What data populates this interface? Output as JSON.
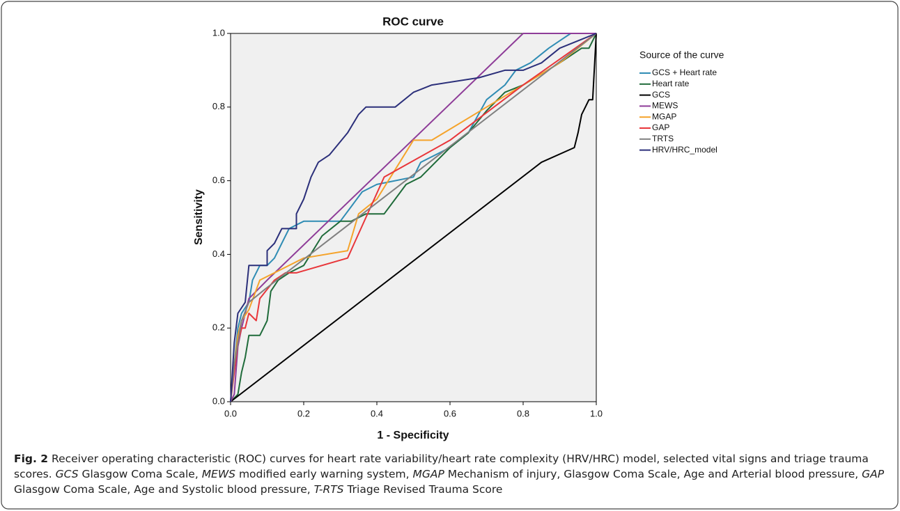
{
  "chart_data": {
    "type": "line",
    "title": "ROC curve",
    "x_label": "1 - Specificity",
    "y_label": "Sensitivity",
    "legend_title": "Source of the curve",
    "legend": "right",
    "grid": false,
    "xlim": [
      0,
      1
    ],
    "ylim": [
      0,
      1
    ],
    "xticks": [
      {
        "value": 0,
        "label": "0.0"
      },
      0.2,
      0.4,
      0.6,
      0.8,
      {
        "value": 1,
        "label": "1.0"
      }
    ],
    "yticks": [
      {
        "value": 0,
        "label": "0.0"
      },
      0.2,
      0.4,
      0.6,
      0.8,
      {
        "value": 1,
        "label": "1.0"
      }
    ],
    "series": [
      {
        "name": "GCS + Heart rate",
        "color": "#2f8cb4",
        "x": [
          0,
          0.01,
          0.02,
          0.03,
          0.05,
          0.06,
          0.08,
          0.1,
          0.12,
          0.14,
          0.16,
          0.2,
          0.3,
          0.33,
          0.36,
          0.4,
          0.5,
          0.52,
          0.6,
          0.65,
          0.7,
          0.75,
          0.78,
          0.82,
          0.87,
          0.9,
          0.93,
          1
        ],
        "values": [
          0,
          0.1,
          0.2,
          0.24,
          0.27,
          0.33,
          0.37,
          0.37,
          0.39,
          0.43,
          0.47,
          0.49,
          0.49,
          0.53,
          0.57,
          0.59,
          0.61,
          0.65,
          0.69,
          0.73,
          0.82,
          0.86,
          0.9,
          0.92,
          0.96,
          0.98,
          1,
          1
        ]
      },
      {
        "name": "Heart rate",
        "color": "#1f6b3a",
        "x": [
          0,
          0.02,
          0.03,
          0.04,
          0.05,
          0.08,
          0.09,
          0.1,
          0.11,
          0.13,
          0.16,
          0.2,
          0.25,
          0.3,
          0.33,
          0.37,
          0.42,
          0.45,
          0.48,
          0.52,
          0.6,
          0.65,
          0.7,
          0.75,
          0.8,
          0.9,
          0.96,
          0.98,
          1
        ],
        "values": [
          0,
          0.02,
          0.08,
          0.12,
          0.18,
          0.18,
          0.2,
          0.22,
          0.3,
          0.33,
          0.35,
          0.37,
          0.45,
          0.49,
          0.49,
          0.51,
          0.51,
          0.55,
          0.59,
          0.61,
          0.69,
          0.73,
          0.79,
          0.84,
          0.86,
          0.92,
          0.96,
          0.96,
          1
        ]
      },
      {
        "name": "GCS",
        "color": "#000000",
        "x": [
          0,
          0.85,
          0.94,
          0.95,
          0.96,
          0.97,
          0.98,
          0.99,
          1
        ],
        "values": [
          0,
          0.65,
          0.69,
          0.73,
          0.78,
          0.8,
          0.82,
          0.82,
          1
        ]
      },
      {
        "name": "MEWS",
        "color": "#8e3c98",
        "x": [
          0,
          0.01,
          0.02,
          0.03,
          0.05,
          0.1,
          0.8,
          1
        ],
        "values": [
          0,
          0.02,
          0.15,
          0.2,
          0.28,
          0.33,
          1,
          1
        ]
      },
      {
        "name": "MGAP",
        "color": "#f5a32a",
        "x": [
          0,
          0.01,
          0.02,
          0.03,
          0.05,
          0.08,
          0.2,
          0.32,
          0.35,
          0.4,
          0.45,
          0.5,
          0.55,
          0.7,
          0.8,
          0.9,
          1
        ],
        "values": [
          0,
          0.1,
          0.18,
          0.22,
          0.25,
          0.33,
          0.39,
          0.41,
          0.51,
          0.55,
          0.63,
          0.71,
          0.71,
          0.8,
          0.86,
          0.92,
          1
        ]
      },
      {
        "name": "GAP",
        "color": "#e8363a",
        "x": [
          0,
          0.01,
          0.02,
          0.03,
          0.04,
          0.05,
          0.07,
          0.08,
          0.12,
          0.15,
          0.18,
          0.32,
          0.42,
          0.6,
          0.8,
          1
        ],
        "values": [
          0,
          0.08,
          0.16,
          0.2,
          0.2,
          0.24,
          0.22,
          0.28,
          0.33,
          0.35,
          0.35,
          0.39,
          0.61,
          0.71,
          0.86,
          1
        ]
      },
      {
        "name": "TRTS",
        "color": "#808080",
        "x": [
          0,
          0.01,
          0.03,
          0.05,
          0.1,
          1
        ],
        "values": [
          0,
          0.1,
          0.22,
          0.27,
          0.31,
          1
        ]
      },
      {
        "name": "HRV/HRC_model",
        "color": "#2b2f7a",
        "x": [
          0,
          0.01,
          0.02,
          0.04,
          0.05,
          0.1,
          0.1,
          0.12,
          0.14,
          0.18,
          0.18,
          0.2,
          0.22,
          0.24,
          0.27,
          0.32,
          0.35,
          0.37,
          0.45,
          0.5,
          0.55,
          0.68,
          0.75,
          0.8,
          0.85,
          0.9,
          0.95,
          1
        ],
        "values": [
          0,
          0.16,
          0.24,
          0.27,
          0.37,
          0.37,
          0.41,
          0.43,
          0.47,
          0.47,
          0.51,
          0.55,
          0.61,
          0.65,
          0.67,
          0.73,
          0.78,
          0.8,
          0.8,
          0.84,
          0.86,
          0.88,
          0.9,
          0.9,
          0.92,
          0.96,
          0.98,
          1
        ]
      }
    ],
    "caption": {
      "label": "Fig. 2",
      "parts": [
        {
          "text": "Receiver operating characteristic (ROC) curves for heart rate variability/heart rate complexity (HRV/HRC) model, selected vital signs and triage trauma scores. ",
          "italic": false
        },
        {
          "text": "GCS",
          "italic": true
        },
        {
          "text": " Glasgow Coma Scale, ",
          "italic": false
        },
        {
          "text": "MEWS",
          "italic": true
        },
        {
          "text": " modified early warning system, ",
          "italic": false
        },
        {
          "text": "MGAP",
          "italic": true
        },
        {
          "text": " Mechanism of injury, Glasgow Coma Scale, Age and Arterial blood pressure, ",
          "italic": false
        },
        {
          "text": "GAP",
          "italic": true
        },
        {
          "text": " Glasgow Coma Scale, Age and Systolic blood pressure, ",
          "italic": false
        },
        {
          "text": "T-RTS",
          "italic": true
        },
        {
          "text": " Triage Revised Trauma Score",
          "italic": false
        }
      ]
    }
  }
}
